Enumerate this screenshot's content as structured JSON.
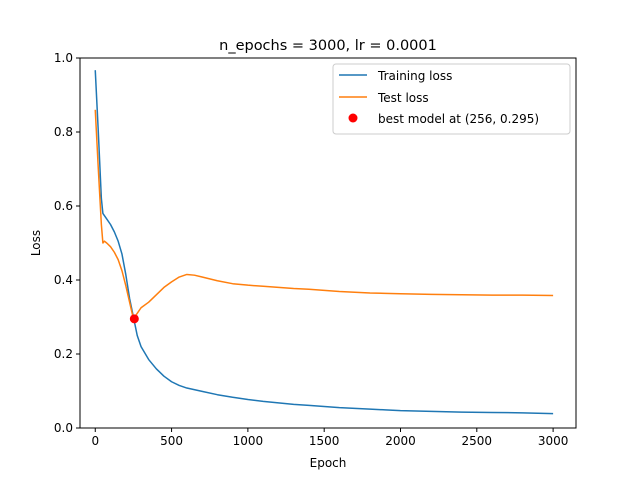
{
  "chart_data": {
    "type": "line",
    "title": "n_epochs = 3000, lr = 0.0001",
    "xlabel": "Epoch",
    "ylabel": "Loss",
    "xlim": [
      -100,
      3150
    ],
    "ylim": [
      0.0,
      1.0
    ],
    "xticks": [
      0,
      500,
      1000,
      1500,
      2000,
      2500,
      3000
    ],
    "xtick_labels": [
      "0",
      "500",
      "1000",
      "1500",
      "2000",
      "2500",
      "3000"
    ],
    "yticks": [
      0.0,
      0.2,
      0.4,
      0.6,
      0.8,
      1.0
    ],
    "ytick_labels": [
      "0.0",
      "0.2",
      "0.4",
      "0.6",
      "0.8",
      "1.0"
    ],
    "grid": false,
    "legend_position": "top-right",
    "series": [
      {
        "name": "Training loss",
        "color": "#1f77b4",
        "x": [
          0,
          20,
          40,
          50,
          75,
          100,
          125,
          150,
          175,
          200,
          225,
          250,
          275,
          300,
          350,
          400,
          450,
          500,
          550,
          600,
          700,
          800,
          900,
          1000,
          1100,
          1200,
          1300,
          1400,
          1500,
          1600,
          1700,
          1800,
          1900,
          2000,
          2200,
          2400,
          2600,
          2800,
          3000
        ],
        "y": [
          0.967,
          0.8,
          0.62,
          0.58,
          0.565,
          0.55,
          0.53,
          0.505,
          0.47,
          0.415,
          0.35,
          0.3,
          0.25,
          0.22,
          0.185,
          0.16,
          0.14,
          0.125,
          0.115,
          0.108,
          0.099,
          0.09,
          0.083,
          0.077,
          0.072,
          0.068,
          0.064,
          0.061,
          0.058,
          0.055,
          0.053,
          0.051,
          0.049,
          0.047,
          0.045,
          0.043,
          0.042,
          0.041,
          0.039
        ]
      },
      {
        "name": "Test loss",
        "color": "#ff7f0e",
        "x": [
          0,
          20,
          40,
          50,
          60,
          75,
          100,
          125,
          150,
          175,
          200,
          225,
          250,
          275,
          300,
          350,
          400,
          450,
          500,
          550,
          600,
          650,
          700,
          800,
          900,
          1000,
          1100,
          1200,
          1300,
          1400,
          1500,
          1600,
          1700,
          1800,
          1900,
          2000,
          2200,
          2400,
          2600,
          2800,
          3000
        ],
        "y": [
          0.86,
          0.7,
          0.55,
          0.5,
          0.505,
          0.5,
          0.49,
          0.475,
          0.455,
          0.425,
          0.385,
          0.34,
          0.295,
          0.31,
          0.325,
          0.34,
          0.36,
          0.38,
          0.395,
          0.408,
          0.415,
          0.413,
          0.408,
          0.398,
          0.39,
          0.386,
          0.383,
          0.38,
          0.377,
          0.375,
          0.372,
          0.369,
          0.367,
          0.365,
          0.364,
          0.363,
          0.361,
          0.36,
          0.359,
          0.359,
          0.358
        ]
      }
    ],
    "markers": [
      {
        "name": "best model at (256, 0.295)",
        "x": 256,
        "y": 0.295,
        "color": "#ff0000"
      }
    ]
  }
}
